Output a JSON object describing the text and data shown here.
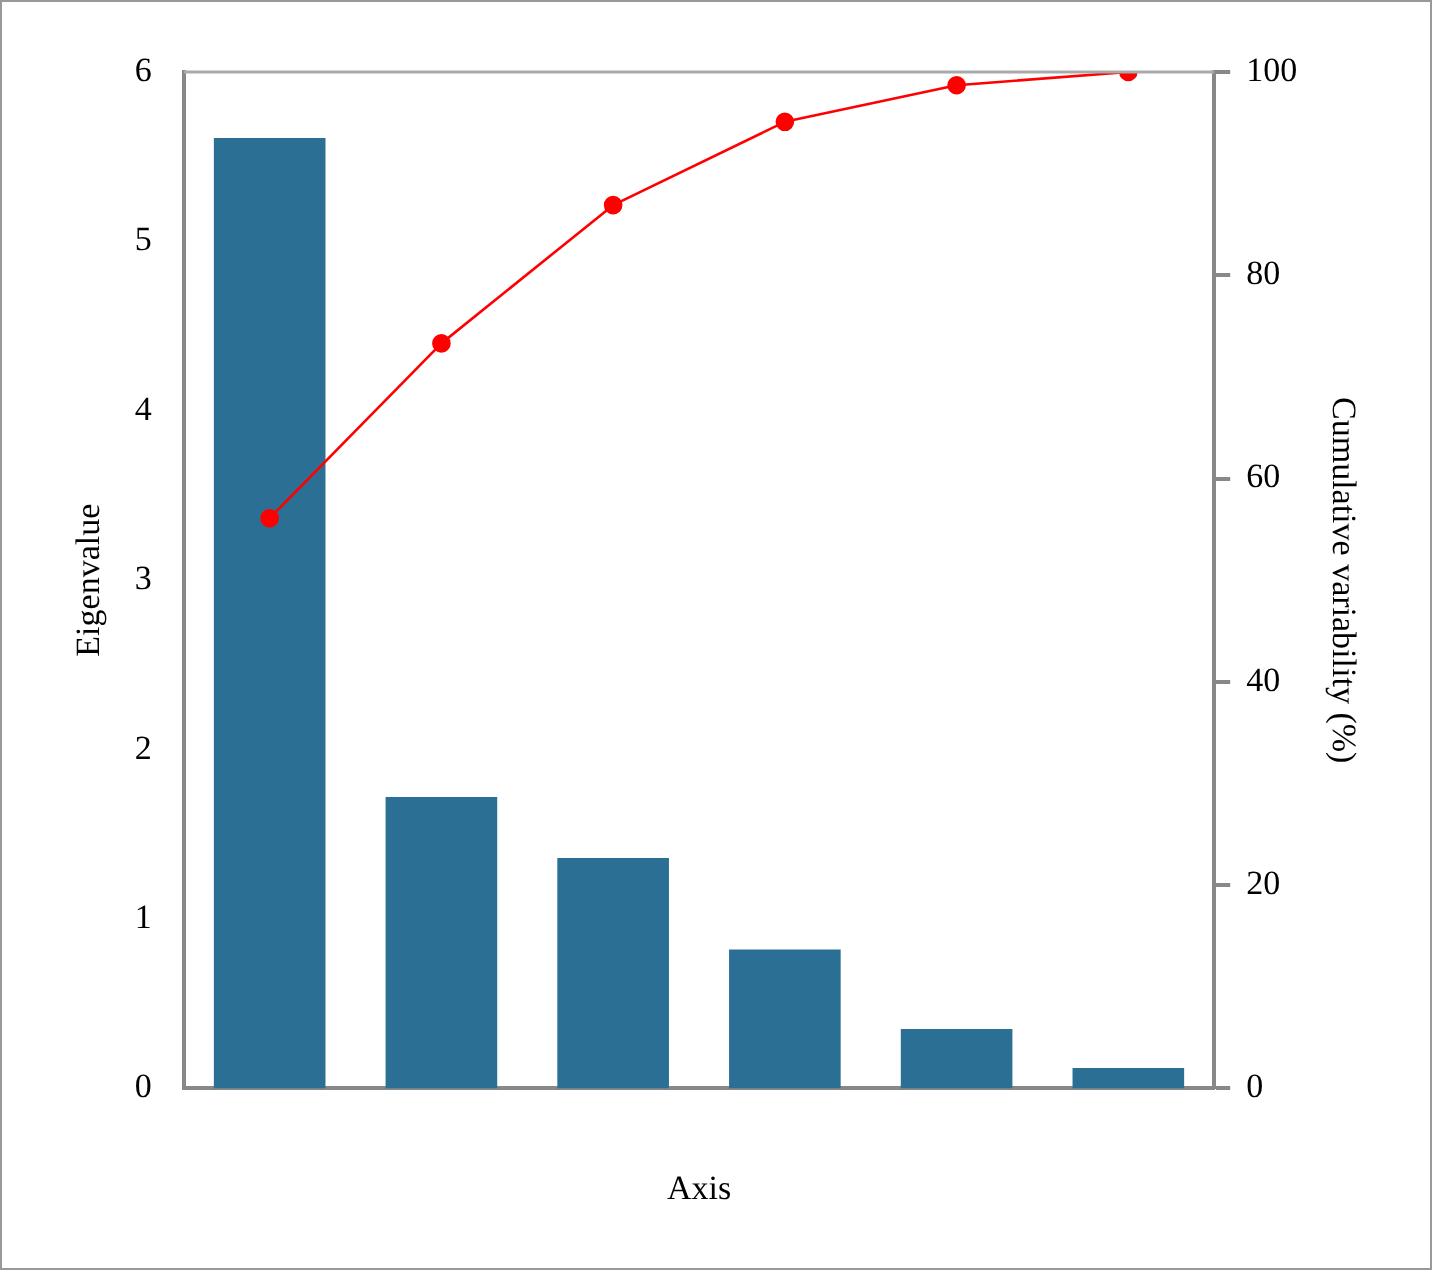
{
  "chart_data": {
    "type": "bar",
    "xlabel": "Axis",
    "ylabel": "Eigenvalue",
    "y2label": "Cumulative variability (%)",
    "categories": [
      null,
      null,
      null,
      null,
      null,
      null
    ],
    "series": [
      {
        "color": "#2b7094",
        "values": [
          5.61,
          1.72,
          1.36,
          0.82,
          0.35,
          0.12
        ]
      },
      {
        "type": "line",
        "axis": "y2",
        "color": "#ff0000",
        "marker": "circle",
        "values": [
          56.1,
          73.3,
          86.9,
          95.1,
          98.7,
          100
        ]
      }
    ],
    "ylim": [
      0,
      6
    ],
    "yticks": [
      0,
      1,
      2,
      3,
      4,
      5,
      6
    ],
    "y2lim": [
      0,
      100
    ],
    "y2ticks": [
      0,
      20,
      40,
      60,
      80,
      100
    ],
    "grid": false,
    "legend": false
  }
}
